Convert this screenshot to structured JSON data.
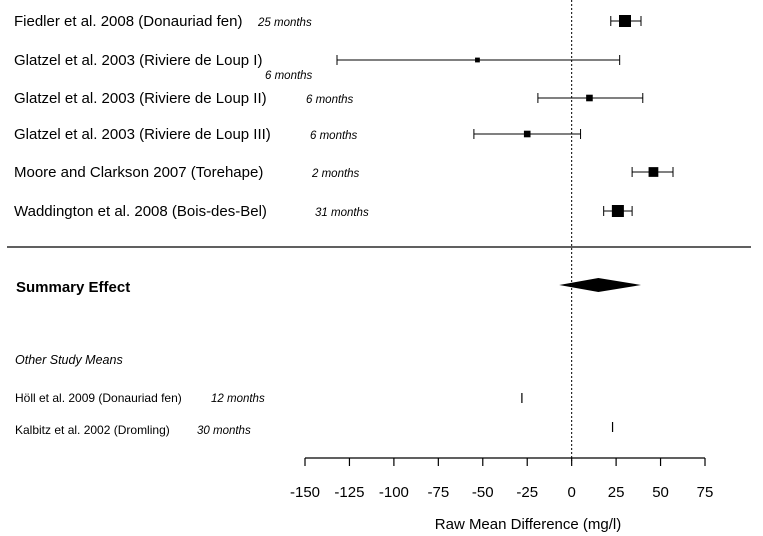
{
  "chart_data": {
    "type": "forest",
    "xlabel": "Raw Mean Difference (mg/l)",
    "xlim": [
      -150,
      75
    ],
    "xticks": [
      "-150",
      "-125",
      "-100",
      "-75",
      "-50",
      "-25",
      "0",
      "25",
      "50",
      "75"
    ],
    "xtick_values": [
      -150,
      -125,
      -100,
      -75,
      -50,
      -25,
      0,
      25,
      50,
      75
    ],
    "reference_line": 0,
    "studies": [
      {
        "label": "Fiedler et al. 2008 (Donauriad fen)",
        "duration": "25 months",
        "mean": 30,
        "lower": 22,
        "upper": 39,
        "weight": 1.0
      },
      {
        "label": "Glatzel et al. 2003 (Riviere de Loup I)",
        "duration": "6 months",
        "mean": -53,
        "lower": -132,
        "upper": 27,
        "weight": 0.2
      },
      {
        "label": "Glatzel et al. 2003 (Riviere de Loup II)",
        "duration": "6 months",
        "mean": 10,
        "lower": -19,
        "upper": 40,
        "weight": 0.4
      },
      {
        "label": "Glatzel et al. 2003 (Riviere de Loup III)",
        "duration": "6 months",
        "mean": -25,
        "lower": -55,
        "upper": 5,
        "weight": 0.4
      },
      {
        "label": "Moore and Clarkson 2007 (Torehape)",
        "duration": "2 months",
        "mean": 46,
        "lower": 34,
        "upper": 57,
        "weight": 0.75
      },
      {
        "label": "Waddington et al. 2008 (Bois-des-Bel)",
        "duration": "31 months",
        "mean": 26,
        "lower": 18,
        "upper": 34,
        "weight": 1.0
      }
    ],
    "summary": {
      "label": "Summary Effect",
      "mean": 15,
      "lower": -7,
      "upper": 39
    },
    "other_heading": "Other Study Means",
    "other_studies": [
      {
        "label": "Höll et al. 2009 (Donauriad fen)",
        "duration": "12 months",
        "mean": -28
      },
      {
        "label": "Kalbitz et al. 2002 (Dromling)",
        "duration": "30 months",
        "mean": 23
      }
    ]
  }
}
